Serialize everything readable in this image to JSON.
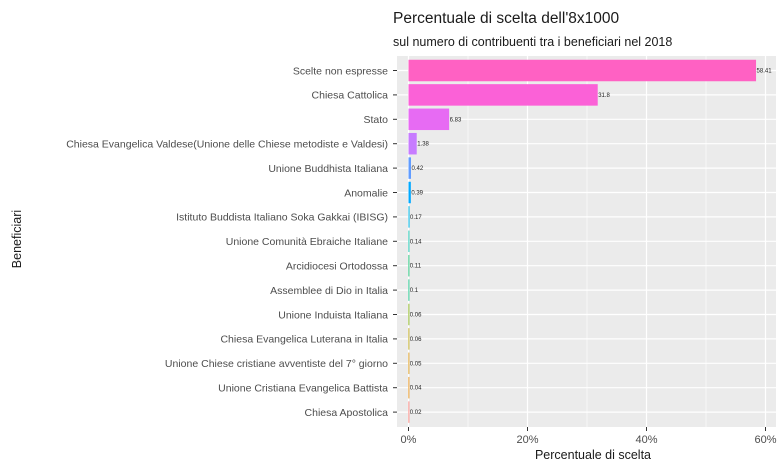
{
  "chart_data": {
    "type": "bar",
    "orientation": "horizontal",
    "title": "Percentuale di scelta dell'8x1000",
    "subtitle": "sul numero di contribuenti tra i beneficiari nel 2018",
    "xlabel": "Percentuale di scelta",
    "ylabel": "Beneficiari",
    "xlim": [
      0,
      61.5
    ],
    "xticks": [
      0,
      20,
      40,
      60
    ],
    "xtick_labels": [
      "0%",
      "20%",
      "40%",
      "60%"
    ],
    "grid": true,
    "legend": "none",
    "categories": [
      "Scelte non espresse",
      "Chiesa Cattolica",
      "Stato",
      "Chiesa Evangelica Valdese(Unione delle Chiese metodiste e Valdesi)",
      "Unione Buddhista Italiana",
      "Anomalie",
      "Istituto Buddista Italiano Soka Gakkai (IBISG)",
      "Unione Comunità Ebraiche Italiane",
      "Arcidiocesi Ortodossa",
      "Assemblee di Dio in Italia",
      "Unione Induista Italiana",
      "Chiesa Evangelica Luterana in Italia",
      "Unione Chiese cristiane avventiste del 7° giorno",
      "Unione Cristiana Evangelica Battista",
      "Chiesa Apostolica"
    ],
    "values": [
      58.41,
      31.8,
      6.83,
      1.38,
      0.42,
      0.39,
      0.17,
      0.14,
      0.11,
      0.1,
      0.06,
      0.06,
      0.05,
      0.04,
      0.02
    ],
    "value_labels": [
      "58.41",
      "31.8",
      "6.83",
      "1.38",
      "0.42",
      "0.39",
      "0.17",
      "0.14",
      "0.11",
      "0.1",
      "0.06",
      "0.06",
      "0.05",
      "0.04",
      "0.02"
    ],
    "colors": [
      "#ff61c3",
      "#fb61d7",
      "#e76bf3",
      "#c77cff",
      "#619cff",
      "#00a9ff",
      "#00b8e7",
      "#00c1aa",
      "#00be67",
      "#00bf7d",
      "#7cae00",
      "#b79f00",
      "#d89000",
      "#e58700",
      "#f8766d"
    ],
    "panel_background": "#ebebeb",
    "grid_color": "#ffffff"
  }
}
